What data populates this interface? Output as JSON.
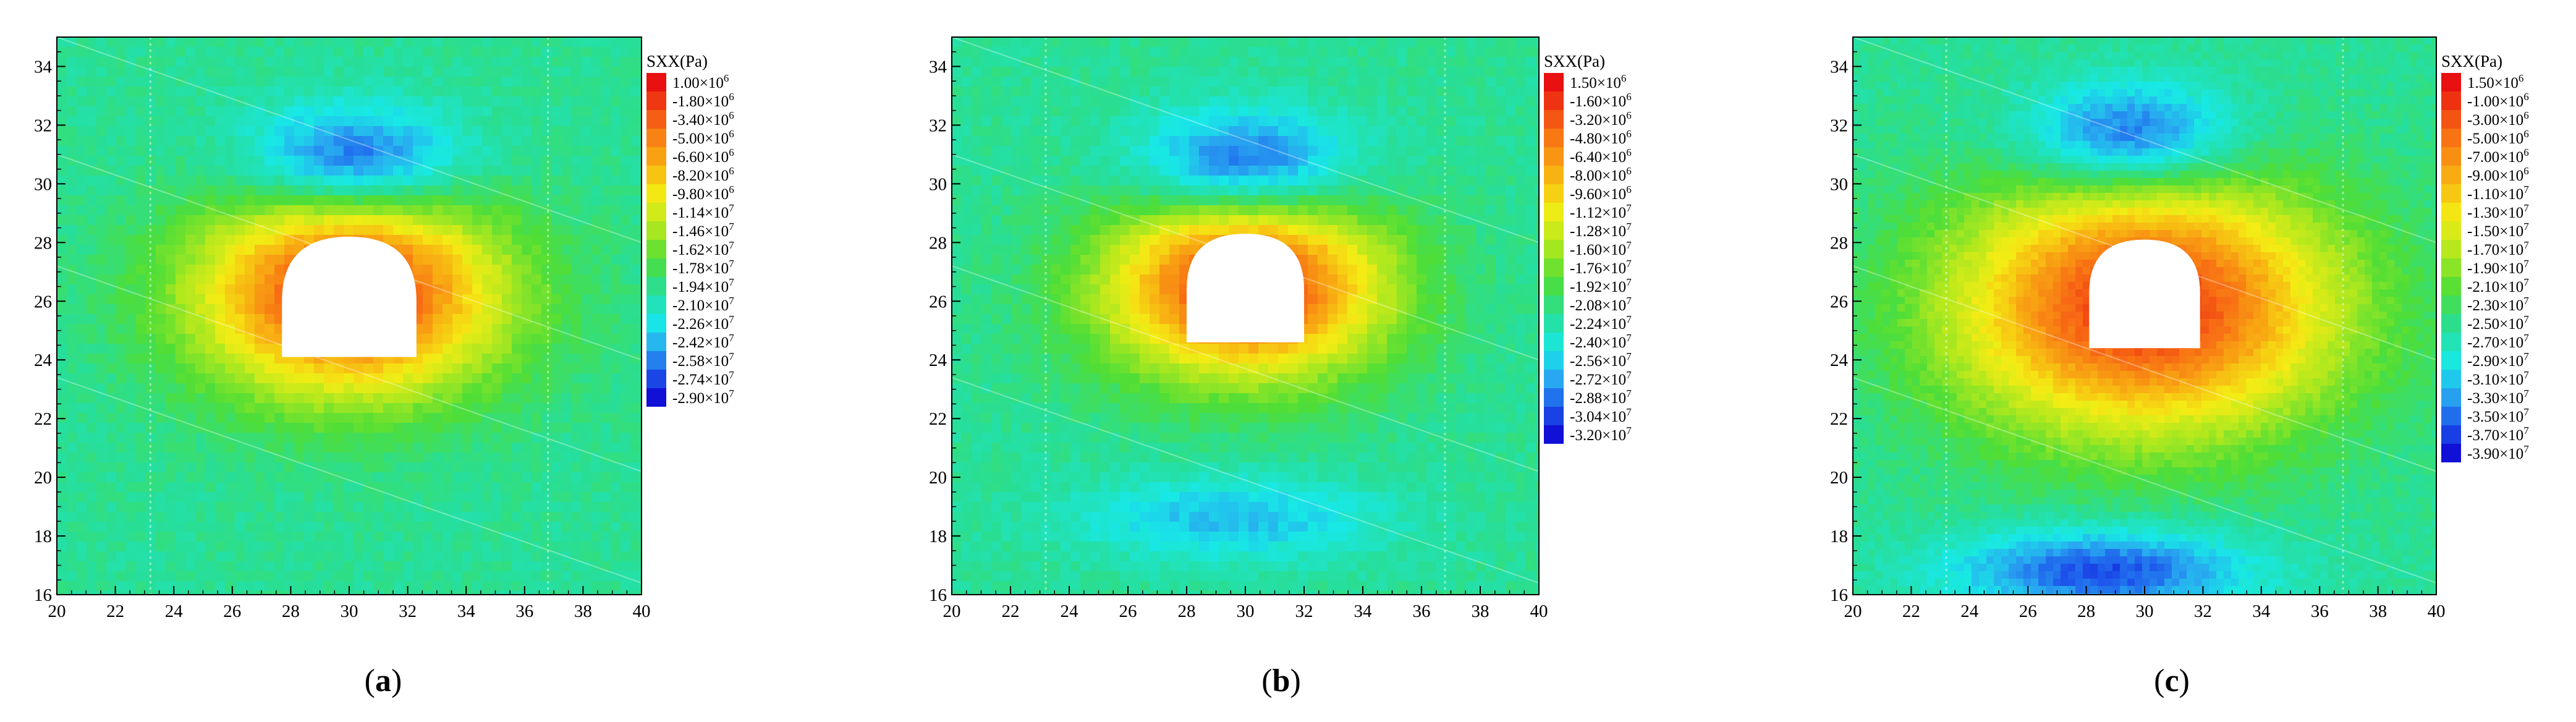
{
  "figure": {
    "panels": [
      {
        "caption_open": "(",
        "caption_letter": "a",
        "caption_close": ")"
      },
      {
        "caption_open": "(",
        "caption_letter": "b",
        "caption_close": ")"
      },
      {
        "caption_open": "(",
        "caption_letter": "c",
        "caption_close": ")"
      }
    ]
  },
  "chart_data": [
    {
      "type": "heatmap",
      "panel": "a",
      "legend_title": "SXX(Pa)",
      "xlim": [
        20,
        40
      ],
      "ylim": [
        16,
        35
      ],
      "xticks": [
        "20",
        "22",
        "24",
        "26",
        "28",
        "30",
        "32",
        "34",
        "36",
        "38",
        "40"
      ],
      "yticks": [
        "16",
        "18",
        "20",
        "22",
        "24",
        "26",
        "28",
        "30",
        "32",
        "34"
      ],
      "grid": false,
      "legend_position": "right",
      "legend_levels": [
        {
          "mant": "1.00",
          "exp": "6"
        },
        {
          "mant": "-1.80",
          "exp": "6"
        },
        {
          "mant": "-3.40",
          "exp": "6"
        },
        {
          "mant": "-5.00",
          "exp": "6"
        },
        {
          "mant": "-6.60",
          "exp": "6"
        },
        {
          "mant": "-8.20",
          "exp": "6"
        },
        {
          "mant": "-9.80",
          "exp": "6"
        },
        {
          "mant": "-1.14",
          "exp": "7"
        },
        {
          "mant": "-1.46",
          "exp": "7"
        },
        {
          "mant": "-1.62",
          "exp": "7"
        },
        {
          "mant": "-1.78",
          "exp": "7"
        },
        {
          "mant": "-1.94",
          "exp": "7"
        },
        {
          "mant": "-2.10",
          "exp": "7"
        },
        {
          "mant": "-2.26",
          "exp": "7"
        },
        {
          "mant": "-2.42",
          "exp": "7"
        },
        {
          "mant": "-2.58",
          "exp": "7"
        },
        {
          "mant": "-2.74",
          "exp": "7"
        },
        {
          "mant": "-2.90",
          "exp": "7"
        }
      ]
    },
    {
      "type": "heatmap",
      "panel": "b",
      "legend_title": "SXX(Pa)",
      "xlim": [
        20,
        40
      ],
      "ylim": [
        16,
        35
      ],
      "xticks": [
        "20",
        "22",
        "24",
        "26",
        "28",
        "30",
        "32",
        "34",
        "36",
        "38",
        "40"
      ],
      "yticks": [
        "16",
        "18",
        "20",
        "22",
        "24",
        "26",
        "28",
        "30",
        "32",
        "34"
      ],
      "grid": false,
      "legend_position": "right",
      "legend_levels": [
        {
          "mant": "1.50",
          "exp": "6"
        },
        {
          "mant": "-1.60",
          "exp": "6"
        },
        {
          "mant": "-3.20",
          "exp": "6"
        },
        {
          "mant": "-4.80",
          "exp": "6"
        },
        {
          "mant": "-6.40",
          "exp": "6"
        },
        {
          "mant": "-8.00",
          "exp": "6"
        },
        {
          "mant": "-9.60",
          "exp": "6"
        },
        {
          "mant": "-1.12",
          "exp": "7"
        },
        {
          "mant": "-1.28",
          "exp": "7"
        },
        {
          "mant": "-1.60",
          "exp": "7"
        },
        {
          "mant": "-1.76",
          "exp": "7"
        },
        {
          "mant": "-1.92",
          "exp": "7"
        },
        {
          "mant": "-2.08",
          "exp": "7"
        },
        {
          "mant": "-2.24",
          "exp": "7"
        },
        {
          "mant": "-2.40",
          "exp": "7"
        },
        {
          "mant": "-2.56",
          "exp": "7"
        },
        {
          "mant": "-2.72",
          "exp": "7"
        },
        {
          "mant": "-2.88",
          "exp": "7"
        },
        {
          "mant": "-3.04",
          "exp": "7"
        },
        {
          "mant": "-3.20",
          "exp": "7"
        }
      ]
    },
    {
      "type": "heatmap",
      "panel": "c",
      "legend_title": "SXX(Pa)",
      "xlim": [
        20,
        40
      ],
      "ylim": [
        16,
        35
      ],
      "xticks": [
        "20",
        "22",
        "24",
        "26",
        "28",
        "30",
        "32",
        "34",
        "36",
        "38",
        "40"
      ],
      "yticks": [
        "16",
        "18",
        "20",
        "22",
        "24",
        "26",
        "28",
        "30",
        "32",
        "34"
      ],
      "grid": false,
      "legend_position": "right",
      "legend_levels": [
        {
          "mant": "1.50",
          "exp": "6"
        },
        {
          "mant": "-1.00",
          "exp": "6"
        },
        {
          "mant": "-3.00",
          "exp": "6"
        },
        {
          "mant": "-5.00",
          "exp": "6"
        },
        {
          "mant": "-7.00",
          "exp": "6"
        },
        {
          "mant": "-9.00",
          "exp": "6"
        },
        {
          "mant": "-1.10",
          "exp": "7"
        },
        {
          "mant": "-1.30",
          "exp": "7"
        },
        {
          "mant": "-1.50",
          "exp": "7"
        },
        {
          "mant": "-1.70",
          "exp": "7"
        },
        {
          "mant": "-1.90",
          "exp": "7"
        },
        {
          "mant": "-2.10",
          "exp": "7"
        },
        {
          "mant": "-2.30",
          "exp": "7"
        },
        {
          "mant": "-2.50",
          "exp": "7"
        },
        {
          "mant": "-2.70",
          "exp": "7"
        },
        {
          "mant": "-2.90",
          "exp": "7"
        },
        {
          "mant": "-3.10",
          "exp": "7"
        },
        {
          "mant": "-3.30",
          "exp": "7"
        },
        {
          "mant": "-3.50",
          "exp": "7"
        },
        {
          "mant": "-3.70",
          "exp": "7"
        },
        {
          "mant": "-3.90",
          "exp": "7"
        }
      ]
    }
  ]
}
